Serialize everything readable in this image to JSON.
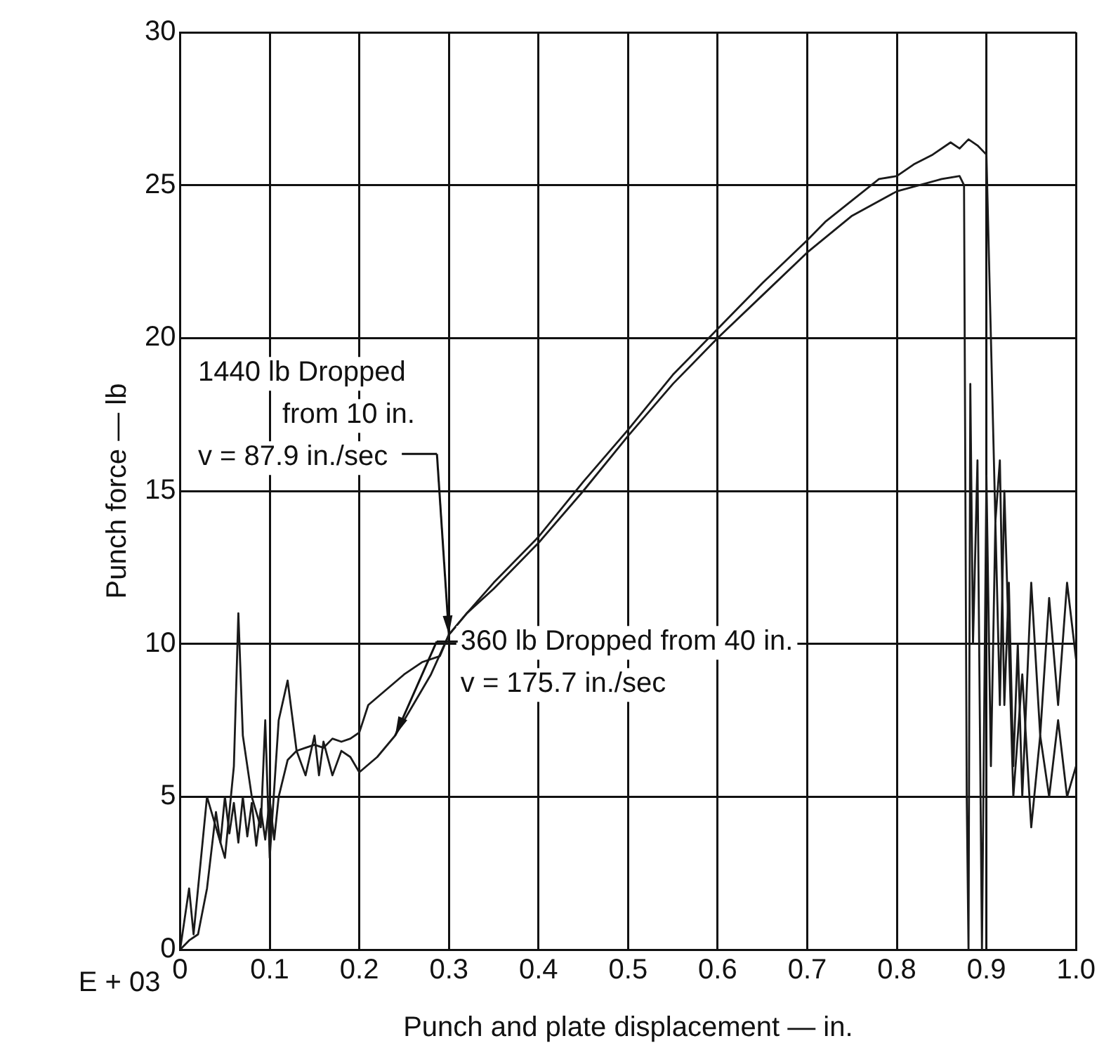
{
  "chart_data": {
    "type": "line",
    "xlabel": "Punch and plate displacement — in.",
    "ylabel": "Punch force — lb",
    "xlim": [
      0,
      1
    ],
    "xticks": [
      0,
      0.1,
      0.2,
      0.3,
      0.4,
      0.5,
      0.6,
      0.7,
      0.8,
      0.9,
      {
        "value": 1,
        "label": "1.0"
      }
    ],
    "ylim": [
      0,
      30
    ],
    "yticks": [
      0,
      5,
      10,
      15,
      20,
      25,
      30
    ],
    "grid": true,
    "legend": false,
    "line_style": "solid",
    "marker": "none",
    "annotations": [
      {
        "text": "1440 lb Dropped\nfrom 10 in.\nv = 87.9 in./sec",
        "x": 0.3,
        "y": 10.3
      },
      {
        "text": "360 lb Dropped from 40 in.\nv = 175.7 in./sec",
        "x": 0.24,
        "y": 7
      },
      "E + 03"
    ],
    "series": [
      {
        "color": "#1a1a1a",
        "x": [
          0,
          0.01,
          0.02,
          0.03,
          0.04,
          0.045,
          0.05,
          0.055,
          0.06,
          0.065,
          0.07,
          0.075,
          0.08,
          0.085,
          0.09,
          0.095,
          0.1,
          0.105,
          0.11,
          0.12,
          0.13,
          0.14,
          0.15,
          0.16,
          0.17,
          0.18,
          0.19,
          0.2,
          0.21,
          0.23,
          0.25,
          0.27,
          0.29,
          0.3,
          0.32,
          0.35,
          0.4,
          0.45,
          0.5,
          0.55,
          0.6,
          0.65,
          0.7,
          0.72,
          0.75,
          0.78,
          0.8,
          0.82,
          0.84,
          0.86,
          0.87,
          0.88,
          0.89,
          0.9,
          0.905,
          0.91,
          0.915,
          0.92,
          0.925,
          0.93,
          0.935,
          0.94,
          0.95,
          0.96,
          0.97,
          0.98,
          0.99,
          1.0
        ],
        "values": [
          0,
          0.3,
          0.5,
          2,
          4.5,
          3.5,
          5,
          3.8,
          4.8,
          3.5,
          5,
          3.7,
          4.8,
          3.4,
          4.6,
          3.6,
          4.9,
          3.6,
          5,
          6.2,
          6.5,
          6.6,
          6.7,
          6.6,
          6.9,
          6.8,
          6.9,
          7.1,
          8,
          8.5,
          9,
          9.4,
          9.6,
          10.3,
          11,
          12,
          13.5,
          15.3,
          17,
          18.8,
          20.3,
          21.8,
          23.2,
          23.8,
          24.5,
          25.2,
          25.3,
          25.7,
          26,
          26.4,
          26.2,
          26.5,
          26.3,
          26,
          20,
          14,
          16,
          8,
          12,
          6,
          10,
          5,
          12,
          7,
          11.5,
          8,
          12,
          9.5
        ]
      },
      {
        "color": "#1a1a1a",
        "x": [
          0,
          0.01,
          0.015,
          0.03,
          0.04,
          0.05,
          0.055,
          0.06,
          0.065,
          0.07,
          0.08,
          0.09,
          0.095,
          0.1,
          0.11,
          0.12,
          0.13,
          0.14,
          0.15,
          0.155,
          0.16,
          0.17,
          0.18,
          0.19,
          0.2,
          0.22,
          0.24,
          0.26,
          0.28,
          0.3,
          0.32,
          0.35,
          0.4,
          0.45,
          0.5,
          0.55,
          0.6,
          0.65,
          0.7,
          0.75,
          0.8,
          0.85,
          0.87,
          0.875,
          0.878,
          0.88,
          0.882,
          0.885,
          0.89,
          0.895,
          0.9,
          0.905,
          0.91,
          0.915,
          0.92,
          0.93,
          0.94,
          0.95,
          0.96,
          0.97,
          0.98,
          0.99,
          1.0
        ],
        "values": [
          0,
          2,
          0.5,
          5,
          4,
          3,
          4.5,
          6,
          11,
          7,
          5,
          4,
          7.5,
          3,
          7.5,
          8.8,
          6.5,
          5.7,
          7,
          5.7,
          6.8,
          5.7,
          6.5,
          6.3,
          5.8,
          6.3,
          7,
          8,
          9,
          10.3,
          11,
          11.8,
          13.3,
          15,
          16.8,
          18.5,
          20,
          21.4,
          22.8,
          24,
          24.8,
          25.2,
          25.3,
          25,
          5,
          0,
          18.5,
          10,
          16,
          0,
          15.5,
          6,
          14,
          8,
          15,
          5,
          9,
          4,
          7,
          5,
          7.5,
          5,
          6
        ]
      }
    ]
  }
}
